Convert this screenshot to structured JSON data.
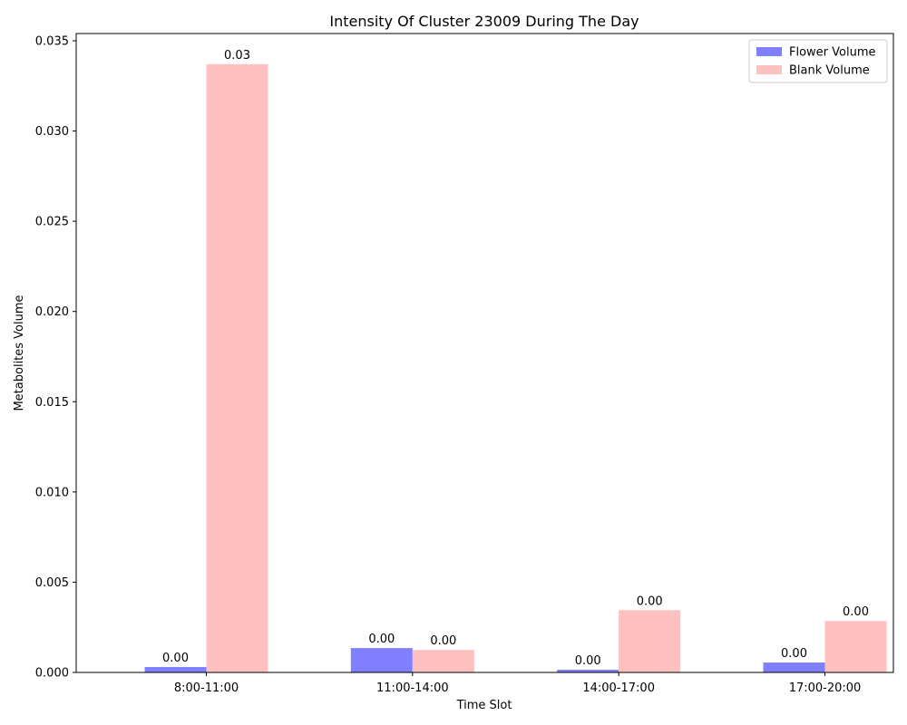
{
  "chart_data": {
    "type": "bar",
    "title": "Intensity Of Cluster 23009 During The Day",
    "xlabel": "Time Slot",
    "ylabel": "Metabolites Volume",
    "categories": [
      "8:00-11:00",
      "11:00-14:00",
      "14:00-17:00",
      "17:00-20:00"
    ],
    "series": [
      {
        "name": "Flower Volume",
        "color": "#8080ff",
        "values": [
          0.0003,
          0.00135,
          0.00015,
          0.00055
        ],
        "labels": [
          "0.00",
          "0.00",
          "0.00",
          "0.00"
        ]
      },
      {
        "name": "Blank Volume",
        "color": "#ffc0c0",
        "values": [
          0.0337,
          0.00125,
          0.00345,
          0.00285
        ],
        "labels": [
          "0.03",
          "0.00",
          "0.00",
          "0.00"
        ]
      }
    ],
    "ylim": [
      0,
      0.0354
    ],
    "yticks": [
      0.0,
      0.005,
      0.01,
      0.015,
      0.02,
      0.025,
      0.03,
      0.035
    ],
    "ytick_labels": [
      "0.000",
      "0.005",
      "0.010",
      "0.015",
      "0.020",
      "0.025",
      "0.030",
      "0.035"
    ],
    "grid": false,
    "legend_position": "top-right"
  }
}
